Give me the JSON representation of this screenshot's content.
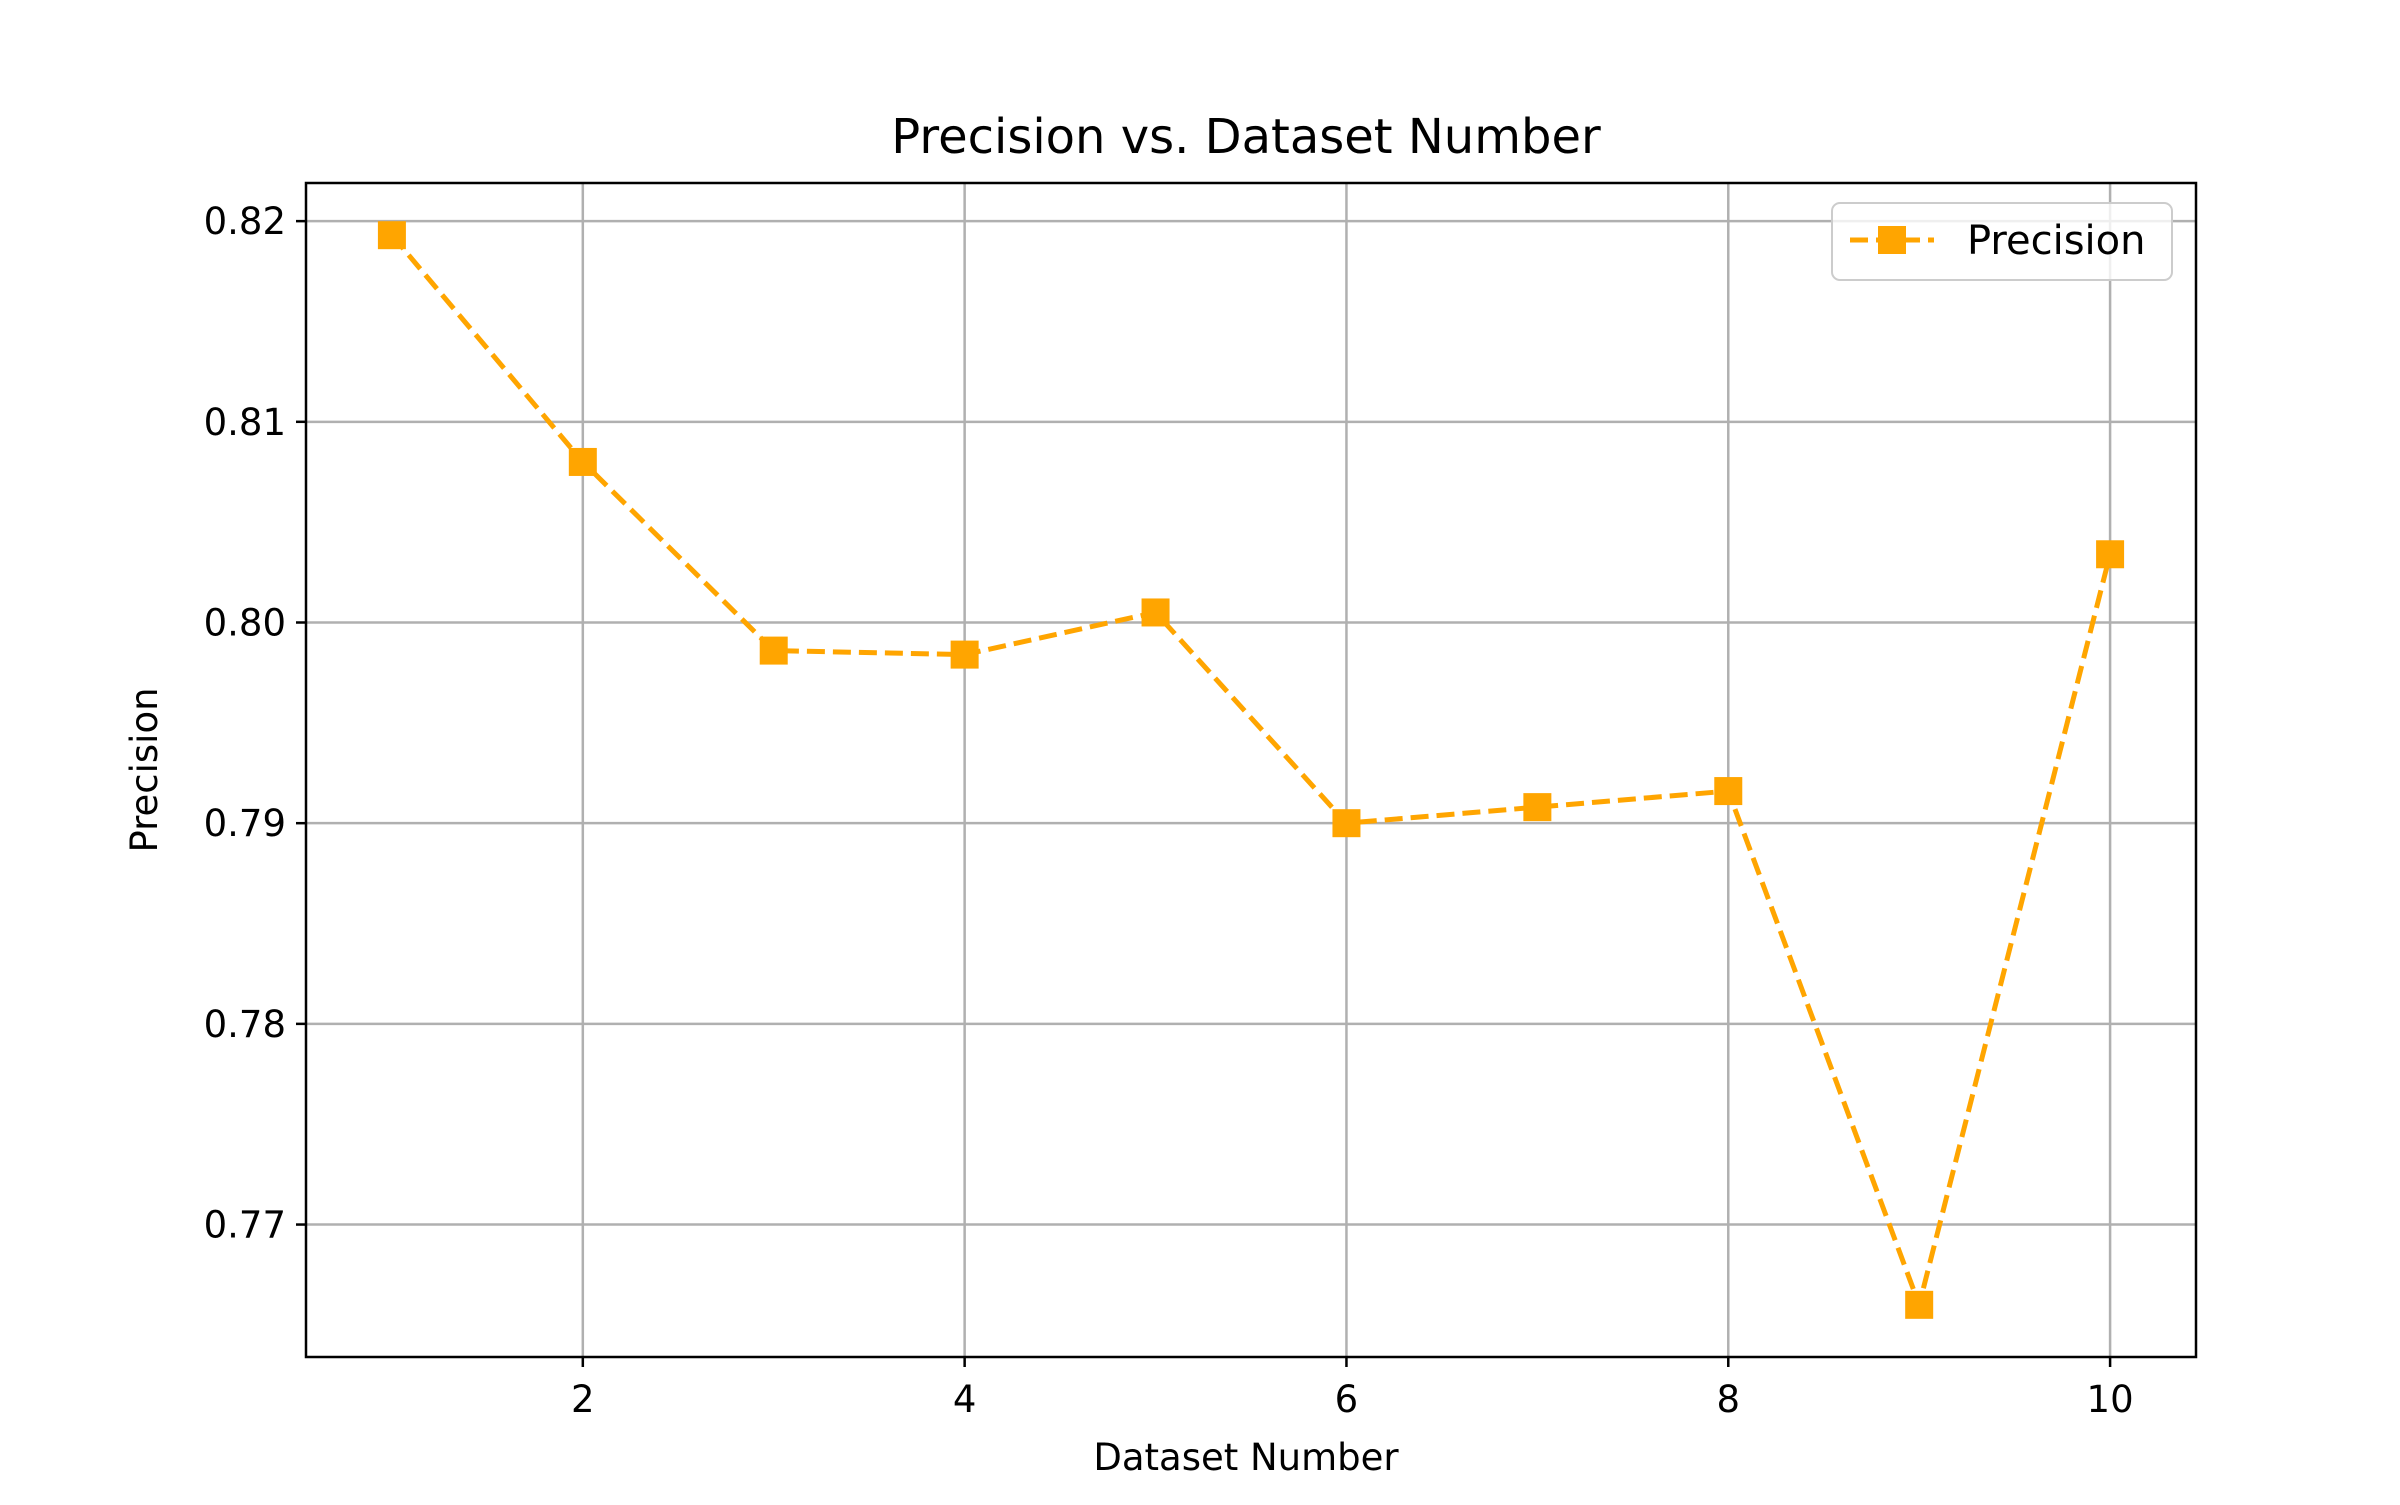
{
  "chart_data": {
    "type": "line",
    "title": "Precision vs. Dataset Number",
    "xlabel": "Dataset Number",
    "ylabel": "Precision",
    "x": [
      1,
      2,
      3,
      4,
      5,
      6,
      7,
      8,
      9,
      10
    ],
    "series": [
      {
        "name": "Precision",
        "values": [
          0.8193,
          0.808,
          0.7986,
          0.7984,
          0.8005,
          0.79,
          0.7908,
          0.7916,
          0.766,
          0.8034
        ],
        "color": "#FFA500",
        "line_style": "dashed",
        "marker": "square"
      }
    ],
    "xlim": [
      0.55,
      10.45
    ],
    "ylim": [
      0.7634,
      0.8219
    ],
    "xticks": [
      2,
      4,
      6,
      8,
      10
    ],
    "xtick_labels": [
      "2",
      "4",
      "6",
      "8",
      "10"
    ],
    "yticks": [
      0.77,
      0.78,
      0.79,
      0.8,
      0.81,
      0.82
    ],
    "ytick_labels": [
      "0.77",
      "0.78",
      "0.79",
      "0.80",
      "0.81",
      "0.82"
    ],
    "grid": true,
    "legend_position": "top-right"
  }
}
